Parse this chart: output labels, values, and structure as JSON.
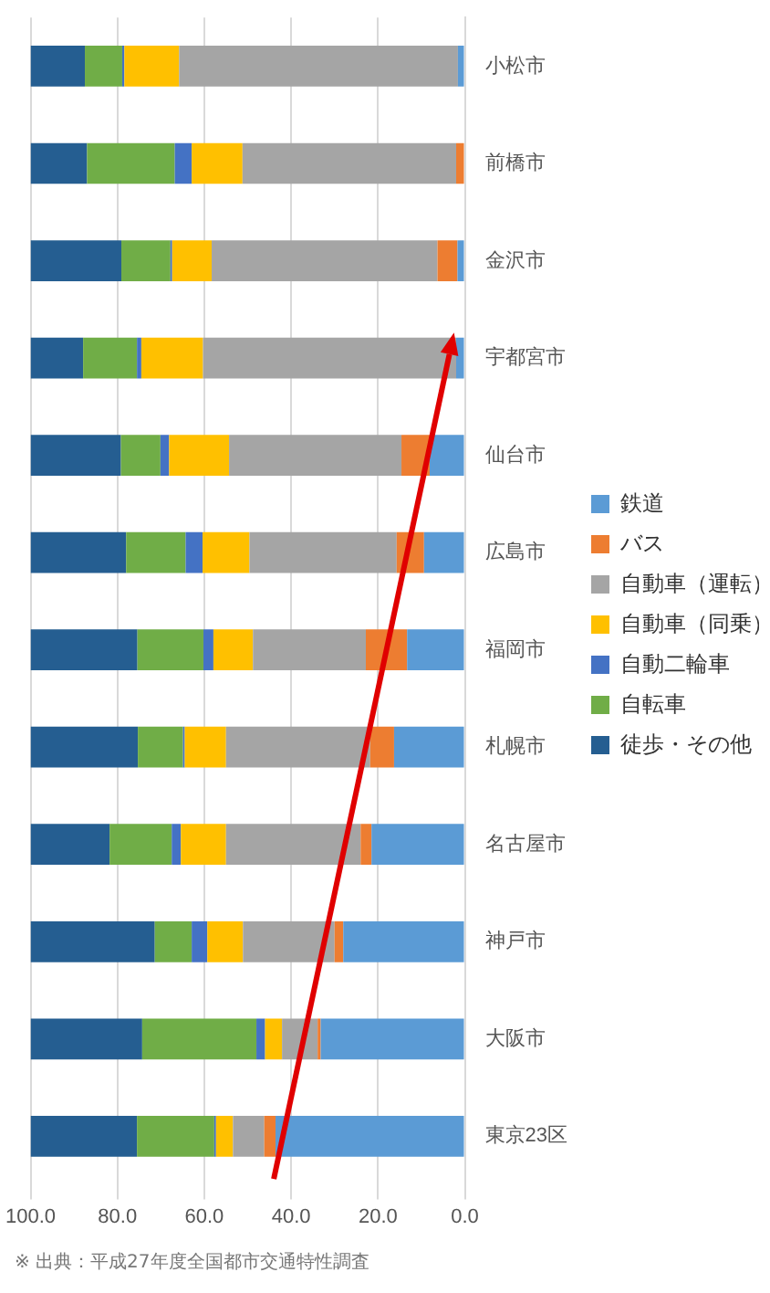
{
  "chart_data": {
    "type": "bar",
    "stacked": true,
    "orientation": "horizontal",
    "categories": [
      "小松市",
      "前橋市",
      "金沢市",
      "宇都宮市",
      "仙台市",
      "広島市",
      "福岡市",
      "札幌市",
      "名古屋市",
      "神戸市",
      "大阪市",
      "東京23区"
    ],
    "series": [
      {
        "name": "鉄道",
        "color": "#5b9bd5",
        "values": [
          1.6,
          0,
          1.7,
          2.0,
          8.1,
          9.4,
          13.3,
          16.3,
          21.5,
          28.0,
          33.2,
          43.6
        ]
      },
      {
        "name": "バス",
        "color": "#ed7d31",
        "values": [
          0,
          2.0,
          4.6,
          0,
          6.5,
          6.3,
          9.5,
          5.5,
          2.5,
          2.0,
          0.7,
          2.6
        ]
      },
      {
        "name": "自動車（運転）",
        "color": "#a5a5a5",
        "values": [
          64.2,
          49.2,
          52.0,
          58.3,
          39.7,
          33.9,
          26.0,
          33.2,
          31.0,
          21.1,
          8.2,
          7.2
        ]
      },
      {
        "name": "自動車（同乗）",
        "color": "#ffc000",
        "values": [
          12.6,
          11.7,
          9.1,
          14.2,
          13.8,
          10.8,
          9.1,
          9.5,
          10.4,
          8.2,
          3.9,
          3.9
        ]
      },
      {
        "name": "自動二輪車",
        "color": "#4472c4",
        "values": [
          0.5,
          3.9,
          0.4,
          1.0,
          2.0,
          3.9,
          2.3,
          0.4,
          2.1,
          3.6,
          2.0,
          0.4
        ]
      },
      {
        "name": "自転車",
        "color": "#70ad47",
        "values": [
          8.6,
          20.2,
          11.3,
          12.4,
          9.1,
          13.7,
          15.2,
          10.4,
          14.3,
          8.5,
          26.3,
          17.8
        ]
      },
      {
        "name": "徒歩・その他",
        "color": "#255e91",
        "values": [
          12.5,
          13.0,
          20.9,
          12.1,
          20.8,
          22.0,
          24.6,
          24.7,
          18.2,
          28.6,
          25.7,
          24.5
        ]
      }
    ],
    "xlim": [
      100,
      0
    ],
    "xticks": [
      {
        "value": 100,
        "label": "100.0"
      },
      {
        "value": 80,
        "label": "80.0"
      },
      {
        "value": 60,
        "label": "60.0"
      },
      {
        "value": 40,
        "label": "40.0"
      },
      {
        "value": 20,
        "label": "20.0"
      },
      {
        "value": 0,
        "label": "0.0"
      }
    ],
    "grid": "x",
    "legend": "right",
    "annotations": [
      "※ 出典：平成27年度全国都市交通特性調査"
    ]
  }
}
